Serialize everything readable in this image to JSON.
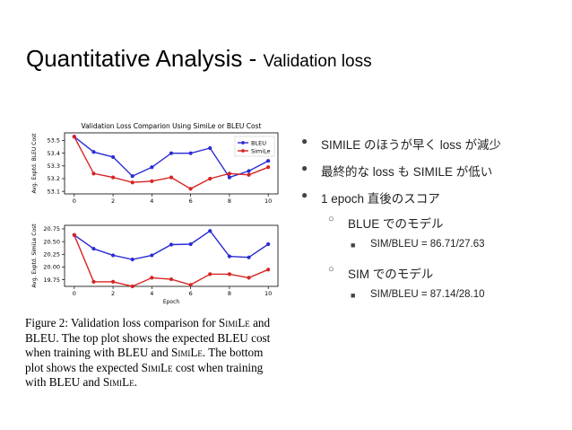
{
  "slide": {
    "title_main": "Quantitative Analysis - ",
    "title_sub": "Validation loss"
  },
  "bullets": [
    {
      "level": 1,
      "marker": "●",
      "text": "SIMILE のほうが早く loss が減少"
    },
    {
      "level": 1,
      "marker": "●",
      "text": "最終的な loss も SIMILE が低い"
    },
    {
      "level": 1,
      "marker": "●",
      "text": "1 epoch 直後のスコア"
    },
    {
      "level": 2,
      "marker": "○",
      "text": "BLUE でのモデル"
    },
    {
      "level": 3,
      "marker": "■",
      "text": "SIM/BLEU = 86.71/27.63"
    },
    {
      "level": 2,
      "marker": "○",
      "text": "SIM でのモデル"
    },
    {
      "level": 3,
      "marker": "■",
      "text": "SIM/BLEU = 87.14/28.10"
    }
  ],
  "caption": {
    "lines": [
      [
        "Figure 2:  Validation loss comparison for ",
        {
          "sc": "SimiLe"
        },
        " and"
      ],
      [
        "BLEU. The top plot shows the expected BLEU cost"
      ],
      [
        "when training with BLEU and ",
        {
          "sc": "SimiLe"
        },
        ".  The bottom"
      ],
      [
        "plot shows the expected ",
        {
          "sc": "SimiLe"
        },
        " cost when training"
      ],
      [
        "with BLEU and ",
        {
          "sc": "SimiLe"
        },
        "."
      ]
    ]
  },
  "colors": {
    "bleu": "#2b2bd6",
    "simile": "#d62424"
  },
  "chart_data": [
    {
      "type": "line",
      "title": "Validation Loss Comparion Using SimiLe or BLEU Cost",
      "xlabel": "",
      "ylabel": "Avg. Exptd. BLEU Cost",
      "x": [
        0,
        1,
        2,
        3,
        4,
        5,
        6,
        7,
        8,
        9,
        10
      ],
      "xticks": [
        0,
        2,
        4,
        6,
        8,
        10
      ],
      "yticks": [
        "53.1",
        "53.2",
        "53.3",
        "53.4",
        "53.5"
      ],
      "ylim": [
        53.08,
        53.56
      ],
      "legend": "top-right",
      "series": [
        {
          "name": "BLEU",
          "color": "#2b2bd6",
          "values": [
            53.53,
            53.41,
            53.37,
            53.22,
            53.29,
            53.4,
            53.4,
            53.44,
            53.21,
            53.26,
            53.34
          ]
        },
        {
          "name": "SimiLe",
          "color": "#d62424",
          "values": [
            53.53,
            53.24,
            53.21,
            53.17,
            53.18,
            53.21,
            53.12,
            53.2,
            53.24,
            53.23,
            53.29
          ]
        }
      ]
    },
    {
      "type": "line",
      "title": "",
      "xlabel": "Epoch",
      "ylabel": "Avg. Exptd. SimiLe Cost",
      "x": [
        0,
        1,
        2,
        3,
        4,
        5,
        6,
        7,
        8,
        9,
        10
      ],
      "xticks": [
        0,
        2,
        4,
        6,
        8,
        10
      ],
      "yticks": [
        "19.75",
        "20.00",
        "20.25",
        "20.50",
        "20.75"
      ],
      "ylim": [
        19.62,
        20.82
      ],
      "legend": "",
      "series": [
        {
          "name": "BLEU",
          "color": "#2b2bd6",
          "values": [
            20.63,
            20.36,
            20.23,
            20.15,
            20.23,
            20.44,
            20.45,
            20.71,
            20.21,
            20.19,
            20.45
          ]
        },
        {
          "name": "SimiLe",
          "color": "#d62424",
          "values": [
            20.63,
            19.71,
            19.71,
            19.62,
            19.79,
            19.76,
            19.65,
            19.86,
            19.86,
            19.79,
            19.95
          ]
        }
      ]
    }
  ]
}
